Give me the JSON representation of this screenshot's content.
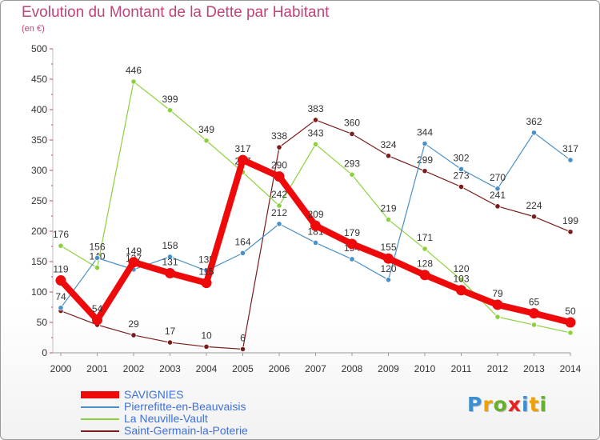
{
  "header": {
    "title": "Evolution du Montant de la Dette par Habitant",
    "subtitle": "(en €)"
  },
  "logo": {
    "text": "Proxiti",
    "colors": [
      "#3c8fd0",
      "#f0a000",
      "#66b02e",
      "#e8221e",
      "#3c8fd0",
      "#f0a000",
      "#66b02e"
    ]
  },
  "chart_data": {
    "type": "line",
    "title": "Evolution du Montant de la Dette par Habitant",
    "subtitle": "(en €)",
    "x": [
      "2000",
      "2001",
      "2002",
      "2003",
      "2004",
      "2005",
      "2006",
      "2007",
      "2008",
      "2009",
      "2010",
      "2011",
      "2012",
      "2013",
      "2014"
    ],
    "ylim": [
      0,
      500
    ],
    "yticks": [
      "0",
      "50",
      "100",
      "150",
      "200",
      "250",
      "300",
      "350",
      "400",
      "450",
      "500"
    ],
    "grid": false,
    "legend": "bottom-left",
    "series": [
      {
        "name": "Saint-Germain-la-Poterie",
        "color": "#7a1c1c",
        "values": [
          69,
          46,
          29,
          17,
          10,
          6,
          338,
          383,
          360,
          324,
          299,
          273,
          241,
          224,
          199
        ],
        "labels": [
          "",
          "",
          "29",
          "17",
          "10",
          "6",
          "338",
          "383",
          "360",
          "324",
          "299",
          "273",
          "241",
          "224",
          "199"
        ]
      },
      {
        "name": "La Neuville-Vault",
        "color": "#8cd13c",
        "values": [
          176,
          140,
          446,
          399,
          349,
          297,
          242,
          343,
          293,
          219,
          171,
          120,
          59,
          46,
          33
        ],
        "labels": [
          "176",
          "140",
          "446",
          "399",
          "349",
          "297",
          "242",
          "343",
          "293",
          "219",
          "171",
          "120",
          "",
          "",
          ""
        ]
      },
      {
        "name": "Pierrefitte-en-Beauvaisis",
        "color": "#4a90c8",
        "values": [
          74,
          156,
          137,
          158,
          135,
          164,
          212,
          181,
          154,
          120,
          344,
          302,
          270,
          362,
          317
        ],
        "labels": [
          "74",
          "156",
          "137",
          "158",
          "135",
          "164",
          "212",
          "181",
          "154",
          "120",
          "344",
          "302",
          "270",
          "362",
          "317"
        ]
      },
      {
        "name": "SAVIGNIES",
        "color": "#ee0a0a",
        "values": [
          119,
          54,
          149,
          131,
          115,
          317,
          290,
          209,
          179,
          155,
          128,
          103,
          79,
          65,
          50
        ],
        "labels": [
          "119",
          "54",
          "149",
          "131",
          "115",
          "317",
          "290",
          "209",
          "179",
          "155",
          "128",
          "103",
          "79",
          "65",
          "50"
        ]
      }
    ],
    "legend_entries": [
      "SAVIGNIES",
      "Pierrefitte-en-Beauvaisis",
      "La Neuville-Vault",
      "Saint-Germain-la-Poterie"
    ]
  }
}
